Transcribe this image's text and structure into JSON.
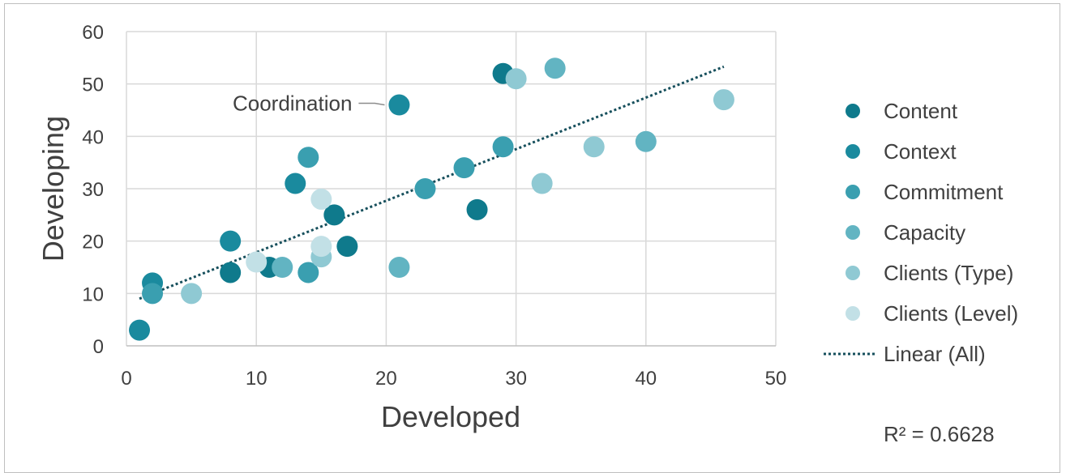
{
  "chart_data": {
    "type": "scatter",
    "xlabel": "Developed",
    "ylabel": "Developing",
    "xlim": [
      0,
      50
    ],
    "ylim": [
      0,
      60
    ],
    "x_ticks": [
      0,
      10,
      20,
      30,
      40,
      50
    ],
    "y_ticks": [
      0,
      10,
      20,
      30,
      40,
      50,
      60
    ],
    "grid": true,
    "legend_position": "right",
    "series": [
      {
        "name": "Content",
        "color": "#0f7a8c",
        "points": [
          [
            8,
            14
          ],
          [
            11,
            15
          ],
          [
            16,
            25
          ],
          [
            17,
            19
          ],
          [
            27,
            26
          ],
          [
            29,
            52
          ]
        ]
      },
      {
        "name": "Context",
        "color": "#1a8a9e",
        "points": [
          [
            1,
            3
          ],
          [
            2,
            12
          ],
          [
            8,
            20
          ],
          [
            13,
            31
          ],
          [
            21,
            46
          ]
        ]
      },
      {
        "name": "Commitment",
        "color": "#3a9fb0",
        "points": [
          [
            2,
            10
          ],
          [
            14,
            14
          ],
          [
            14,
            36
          ],
          [
            23,
            30
          ],
          [
            26,
            34
          ],
          [
            29,
            38
          ]
        ]
      },
      {
        "name": "Capacity",
        "color": "#62b4c2",
        "points": [
          [
            12,
            15
          ],
          [
            21,
            15
          ],
          [
            33,
            53
          ],
          [
            40,
            39
          ]
        ]
      },
      {
        "name": "Clients (Type)",
        "color": "#8fc9d3",
        "points": [
          [
            5,
            10
          ],
          [
            15,
            17
          ],
          [
            30,
            51
          ],
          [
            32,
            31
          ],
          [
            36,
            38
          ],
          [
            46,
            47
          ]
        ]
      },
      {
        "name": "Clients (Level)",
        "color": "#c2e0e6",
        "points": [
          [
            10,
            16
          ],
          [
            15,
            19
          ],
          [
            15,
            28
          ]
        ]
      }
    ],
    "trendline": {
      "name": "Linear (All)",
      "color": "#164f5c",
      "x_range": [
        1,
        46
      ],
      "y_start": 9,
      "y_end": 53.3
    },
    "annotation": {
      "text": "Coordination",
      "x": 21,
      "y": 46
    },
    "r_squared": "R² = 0.6628"
  }
}
